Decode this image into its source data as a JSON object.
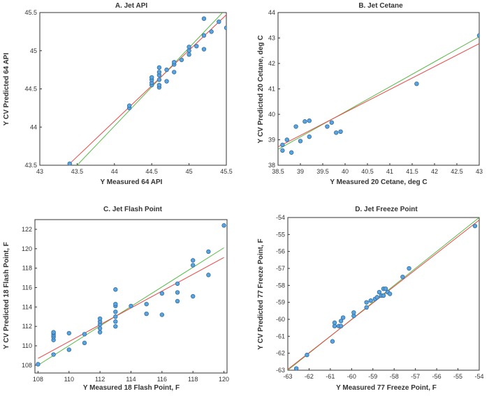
{
  "colors": {
    "points": "#5ba3dc",
    "point_edge": "#2f6ea6",
    "fit_line": "#ee4444",
    "ideal_line": "#55bb44",
    "axis": "#333333"
  },
  "chart_data": [
    {
      "type": "scatter",
      "title": "A. Jet API",
      "xlabel": "Y Measured 64 API",
      "ylabel": "Y CV Predicted 64 API",
      "xlim": [
        43,
        45.5
      ],
      "ylim": [
        43.5,
        45.5
      ],
      "xticks": [
        43,
        43.5,
        44,
        44.5,
        45,
        45.5
      ],
      "yticks": [
        43.5,
        44,
        44.5,
        45,
        45.5
      ],
      "xtick_labels": [
        "43",
        "43.5",
        "44",
        "44.5",
        "45",
        "45.5"
      ],
      "ytick_labels": [
        "43.5",
        "44",
        "44.5",
        "45",
        "45.5"
      ],
      "x": [
        43.4,
        44.2,
        44.2,
        44.5,
        44.5,
        44.5,
        44.5,
        44.6,
        44.6,
        44.6,
        44.6,
        44.6,
        44.6,
        44.7,
        44.7,
        44.8,
        44.8,
        44.8,
        44.9,
        45.0,
        45.0,
        45.0,
        45.1,
        45.2,
        45.2,
        45.2,
        45.3,
        45.4,
        45.5
      ],
      "y": [
        43.52,
        44.25,
        44.28,
        44.55,
        44.58,
        44.62,
        44.65,
        44.52,
        44.55,
        44.62,
        44.68,
        44.72,
        44.78,
        44.6,
        44.75,
        44.72,
        44.82,
        44.85,
        44.88,
        44.95,
        45.0,
        45.05,
        45.06,
        45.02,
        45.2,
        45.42,
        45.25,
        45.38,
        45.3
      ],
      "fit_line": [
        [
          43.4,
          43.52
        ],
        [
          45.5,
          45.47
        ]
      ],
      "ideal_line": [
        [
          43.5,
          43.5
        ],
        [
          45.45,
          45.5
        ]
      ]
    },
    {
      "type": "scatter",
      "title": "B. Jet Cetane",
      "xlabel": "Y Measured 20 Cetane, deg C",
      "ylabel": "Y CV Predicted 20 Cetane, deg C",
      "xlim": [
        38.5,
        43
      ],
      "ylim": [
        38,
        44
      ],
      "xticks": [
        38.5,
        39,
        39.5,
        40,
        40.5,
        41,
        41.5,
        42,
        42.5,
        43
      ],
      "yticks": [
        38,
        39,
        40,
        41,
        42,
        43,
        44
      ],
      "xtick_labels": [
        "38.5",
        "39",
        "39.5",
        "40",
        "40.5",
        "41",
        "41.5",
        "42",
        "42.5",
        "43"
      ],
      "ytick_labels": [
        "38",
        "39",
        "40",
        "41",
        "42",
        "43",
        "44"
      ],
      "x": [
        38.6,
        38.6,
        38.7,
        38.8,
        38.9,
        39.0,
        39.1,
        39.2,
        39.2,
        39.6,
        39.7,
        39.8,
        39.9,
        41.6,
        43.0
      ],
      "y": [
        38.58,
        38.8,
        39.0,
        38.5,
        39.52,
        38.95,
        39.72,
        39.75,
        39.12,
        39.52,
        39.68,
        39.28,
        39.32,
        41.2,
        43.1
      ],
      "fit_line": [
        [
          38.5,
          38.72
        ],
        [
          43.0,
          42.78
        ]
      ],
      "ideal_line": [
        [
          38.5,
          38.62
        ],
        [
          43.0,
          43.05
        ]
      ]
    },
    {
      "type": "scatter",
      "title": "C. Jet Flash Point",
      "xlabel": "Y Measured 18 Flash Point, F",
      "ylabel": "Y CV Predicted 18 Flash Point, F",
      "xlim": [
        107.8,
        120.2
      ],
      "ylim": [
        107.2,
        123
      ],
      "xticks": [
        108,
        110,
        112,
        114,
        116,
        118,
        120
      ],
      "yticks": [
        108,
        110,
        112,
        114,
        116,
        118,
        120,
        122
      ],
      "xtick_labels": [
        "108",
        "110",
        "112",
        "114",
        "116",
        "118",
        "120"
      ],
      "ytick_labels": [
        "108",
        "110",
        "112",
        "114",
        "116",
        "118",
        "120",
        "122"
      ],
      "x": [
        108,
        109,
        109,
        109,
        109,
        109,
        109,
        110,
        110,
        111,
        111,
        112,
        112,
        112,
        112,
        112,
        113,
        113,
        113,
        113,
        113,
        113,
        113,
        114,
        115,
        115,
        116,
        116,
        117,
        117,
        117,
        118,
        118,
        118,
        119,
        119,
        120
      ],
      "y": [
        108.1,
        109.1,
        110.6,
        110.9,
        111.1,
        111.3,
        111.4,
        109.6,
        111.3,
        110.3,
        111.2,
        111.4,
        111.8,
        112.2,
        112.5,
        112.8,
        112.0,
        112.5,
        113.0,
        113.5,
        114.1,
        114.3,
        115.8,
        114.1,
        113.3,
        114.3,
        113.2,
        115.4,
        114.6,
        115.5,
        116.4,
        115.1,
        118.3,
        118.8,
        117.3,
        119.7,
        122.4
      ],
      "fit_line": [
        [
          108,
          108.7
        ],
        [
          120,
          119.1
        ]
      ],
      "ideal_line": [
        [
          108,
          108.0
        ],
        [
          120,
          120.1
        ]
      ]
    },
    {
      "type": "scatter",
      "title": "D. Jet Freeze Point",
      "xlabel": "Y Measured 77 Freeze Point, F",
      "ylabel": "Y CV Predicted 77 Freeze Point, F",
      "xlim": [
        -63,
        -54
      ],
      "ylim": [
        -63,
        -54
      ],
      "xticks": [
        -63,
        -62,
        -61,
        -60,
        -59,
        -58,
        -57,
        -56,
        -55,
        -54
      ],
      "yticks": [
        -63,
        -62,
        -61,
        -60,
        -59,
        -58,
        -57,
        -56,
        -55,
        -54
      ],
      "xtick_labels": [
        "-63",
        "-62",
        "-61",
        "-60",
        "-59",
        "-58",
        "-57",
        "-56",
        "-55",
        "-54"
      ],
      "ytick_labels": [
        "-63",
        "-62",
        "-61",
        "-60",
        "-59",
        "-58",
        "-57",
        "-56",
        "-55",
        "-54"
      ],
      "x": [
        -62.6,
        -62.1,
        -60.9,
        -60.8,
        -60.8,
        -60.6,
        -60.5,
        -60.5,
        -60.4,
        -59.9,
        -59.9,
        -59.3,
        -59.3,
        -59.1,
        -58.9,
        -58.8,
        -58.7,
        -58.6,
        -58.5,
        -58.5,
        -58.4,
        -58.3,
        -58.2,
        -57.6,
        -57.3,
        -54.2
      ],
      "y": [
        -62.9,
        -62.1,
        -61.3,
        -60.4,
        -60.2,
        -60.4,
        -60.1,
        -60.4,
        -59.9,
        -59.8,
        -59.6,
        -59.0,
        -59.3,
        -58.9,
        -58.8,
        -58.7,
        -58.4,
        -58.6,
        -58.2,
        -58.6,
        -58.2,
        -58.4,
        -58.5,
        -57.5,
        -57.0,
        -54.5
      ],
      "fit_line": [
        [
          -63,
          -62.95
        ],
        [
          -54,
          -54.15
        ]
      ],
      "ideal_line": [
        [
          -63,
          -63.0
        ],
        [
          -54,
          -54.0
        ]
      ]
    }
  ]
}
